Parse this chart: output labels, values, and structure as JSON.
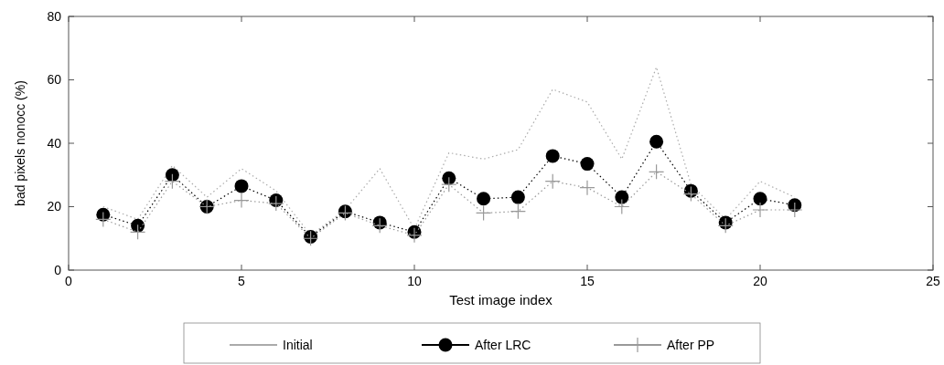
{
  "chart_data": {
    "type": "line",
    "xlabel": "Test image index",
    "ylabel": "bad pixels nonocc (%)",
    "x": [
      1,
      2,
      3,
      4,
      5,
      6,
      7,
      8,
      9,
      10,
      11,
      12,
      13,
      14,
      15,
      16,
      17,
      18,
      19,
      20,
      21
    ],
    "xlim": [
      0,
      25
    ],
    "xticks": [
      0,
      5,
      10,
      15,
      20,
      25
    ],
    "ylim": [
      0,
      80
    ],
    "yticks": [
      0,
      20,
      40,
      60,
      80
    ],
    "grid": false,
    "legend": "bottom",
    "series": [
      {
        "name": "Initial",
        "color": "#aaaaaa",
        "line_style": "dotted",
        "marker": "none",
        "values": [
          20,
          16,
          33,
          23,
          32,
          25,
          11,
          19,
          32,
          13,
          37,
          35,
          38,
          57,
          53,
          35,
          64,
          27,
          16,
          28,
          23
        ]
      },
      {
        "name": "After LRC",
        "color": "#000000",
        "line_style": "dotted",
        "marker": "circle",
        "values": [
          17.5,
          14,
          30,
          20,
          26.5,
          22,
          10.5,
          18.5,
          15,
          12,
          29,
          22.5,
          23,
          36,
          33.5,
          23,
          40.5,
          25,
          15,
          22.5,
          20.5
        ]
      },
      {
        "name": "After PP",
        "color": "#999999",
        "line_style": "dotted",
        "marker": "cross",
        "values": [
          16,
          12,
          28,
          20,
          22,
          21,
          10,
          18,
          14,
          11,
          27,
          18,
          18.5,
          28,
          26,
          20,
          31,
          24,
          14,
          19,
          19
        ]
      }
    ]
  }
}
